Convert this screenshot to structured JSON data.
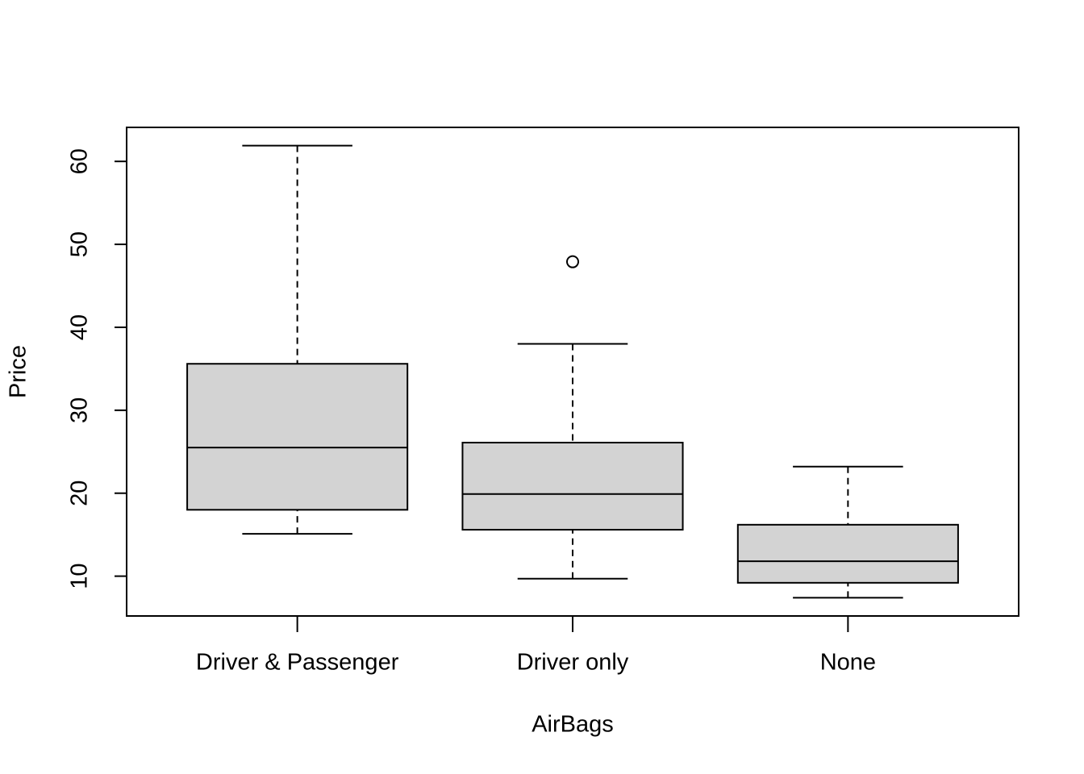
{
  "chart_data": {
    "type": "box",
    "x_label": "AirBags",
    "y_label": "Price",
    "categories": [
      "Driver & Passenger",
      "Driver only",
      "None"
    ],
    "min": [
      15.1,
      9.7,
      7.4
    ],
    "q1": [
      18.0,
      15.6,
      9.2
    ],
    "median": [
      25.5,
      19.9,
      11.8
    ],
    "q3": [
      35.6,
      26.1,
      16.2
    ],
    "max": [
      61.9,
      38.0,
      23.2
    ],
    "outliers": [
      [],
      [
        47.9
      ],
      []
    ],
    "color": "#d3d3d3",
    "ylim": [
      5.2,
      64.1
    ],
    "yticks": [
      10,
      20,
      30,
      40,
      50,
      60
    ]
  }
}
